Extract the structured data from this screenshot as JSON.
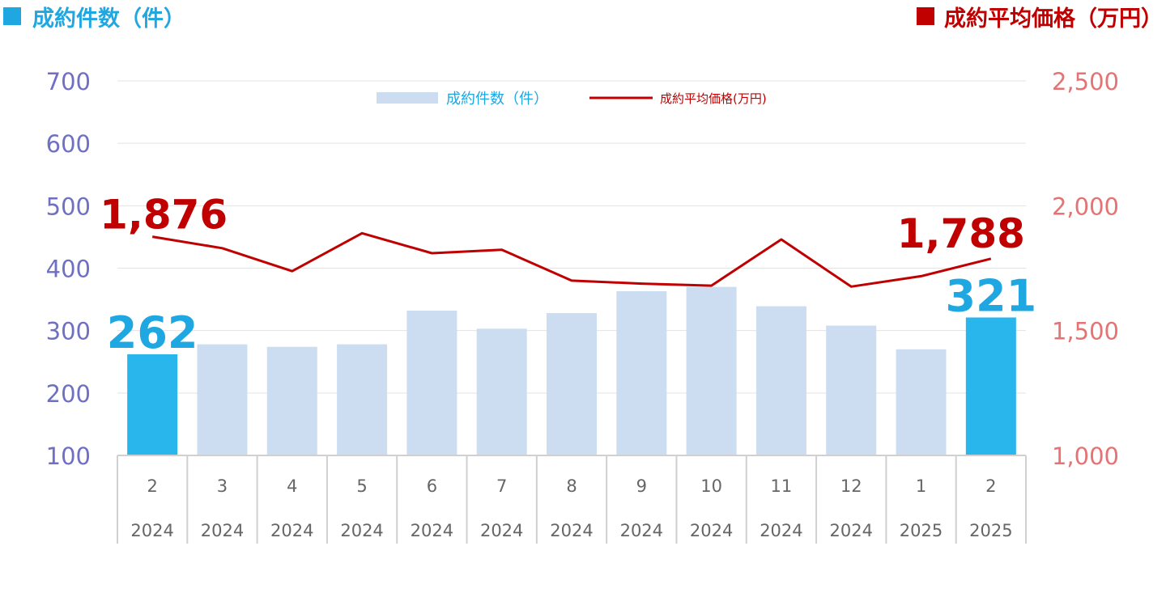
{
  "header": {
    "left_title": "成約件数（件）",
    "right_title": "成約平均価格（万円）",
    "left_color": "#1ea7e1",
    "right_color": "#c00000"
  },
  "chart_data": {
    "type": "bar",
    "categories": [
      {
        "month": "2",
        "year": "2024"
      },
      {
        "month": "3",
        "year": "2024"
      },
      {
        "month": "4",
        "year": "2024"
      },
      {
        "month": "5",
        "year": "2024"
      },
      {
        "month": "6",
        "year": "2024"
      },
      {
        "month": "7",
        "year": "2024"
      },
      {
        "month": "8",
        "year": "2024"
      },
      {
        "month": "9",
        "year": "2024"
      },
      {
        "month": "10",
        "year": "2024"
      },
      {
        "month": "11",
        "year": "2024"
      },
      {
        "month": "12",
        "year": "2024"
      },
      {
        "month": "1",
        "year": "2025"
      },
      {
        "month": "2",
        "year": "2025"
      }
    ],
    "series": [
      {
        "name": "成約件数（件）",
        "type": "bar",
        "axis": "left",
        "values": [
          262,
          278,
          274,
          278,
          332,
          303,
          328,
          363,
          370,
          339,
          308,
          270,
          321
        ],
        "color": "#ccddf2",
        "highlight_color": "#29b6ed",
        "highlight_indices": [
          0,
          12
        ]
      },
      {
        "name": "成約平均価格(万円)",
        "type": "line",
        "axis": "right",
        "values": [
          1876,
          1830,
          1738,
          1890,
          1810,
          1824,
          1700,
          1688,
          1680,
          1865,
          1676,
          1718,
          1788
        ],
        "color": "#c00000"
      }
    ],
    "left_axis": {
      "min": 100,
      "max": 700,
      "ticks": [
        "100",
        "200",
        "300",
        "400",
        "500",
        "600",
        "700"
      ]
    },
    "right_axis": {
      "min": 1000,
      "max": 2500,
      "ticks": [
        "1,000",
        "1,500",
        "2,000",
        "2,500"
      ]
    },
    "annotations": {
      "first_count": "262",
      "last_count": "321",
      "first_price": "1,876",
      "last_price": "1,788"
    },
    "legend_position": "top-center",
    "grid": true
  }
}
